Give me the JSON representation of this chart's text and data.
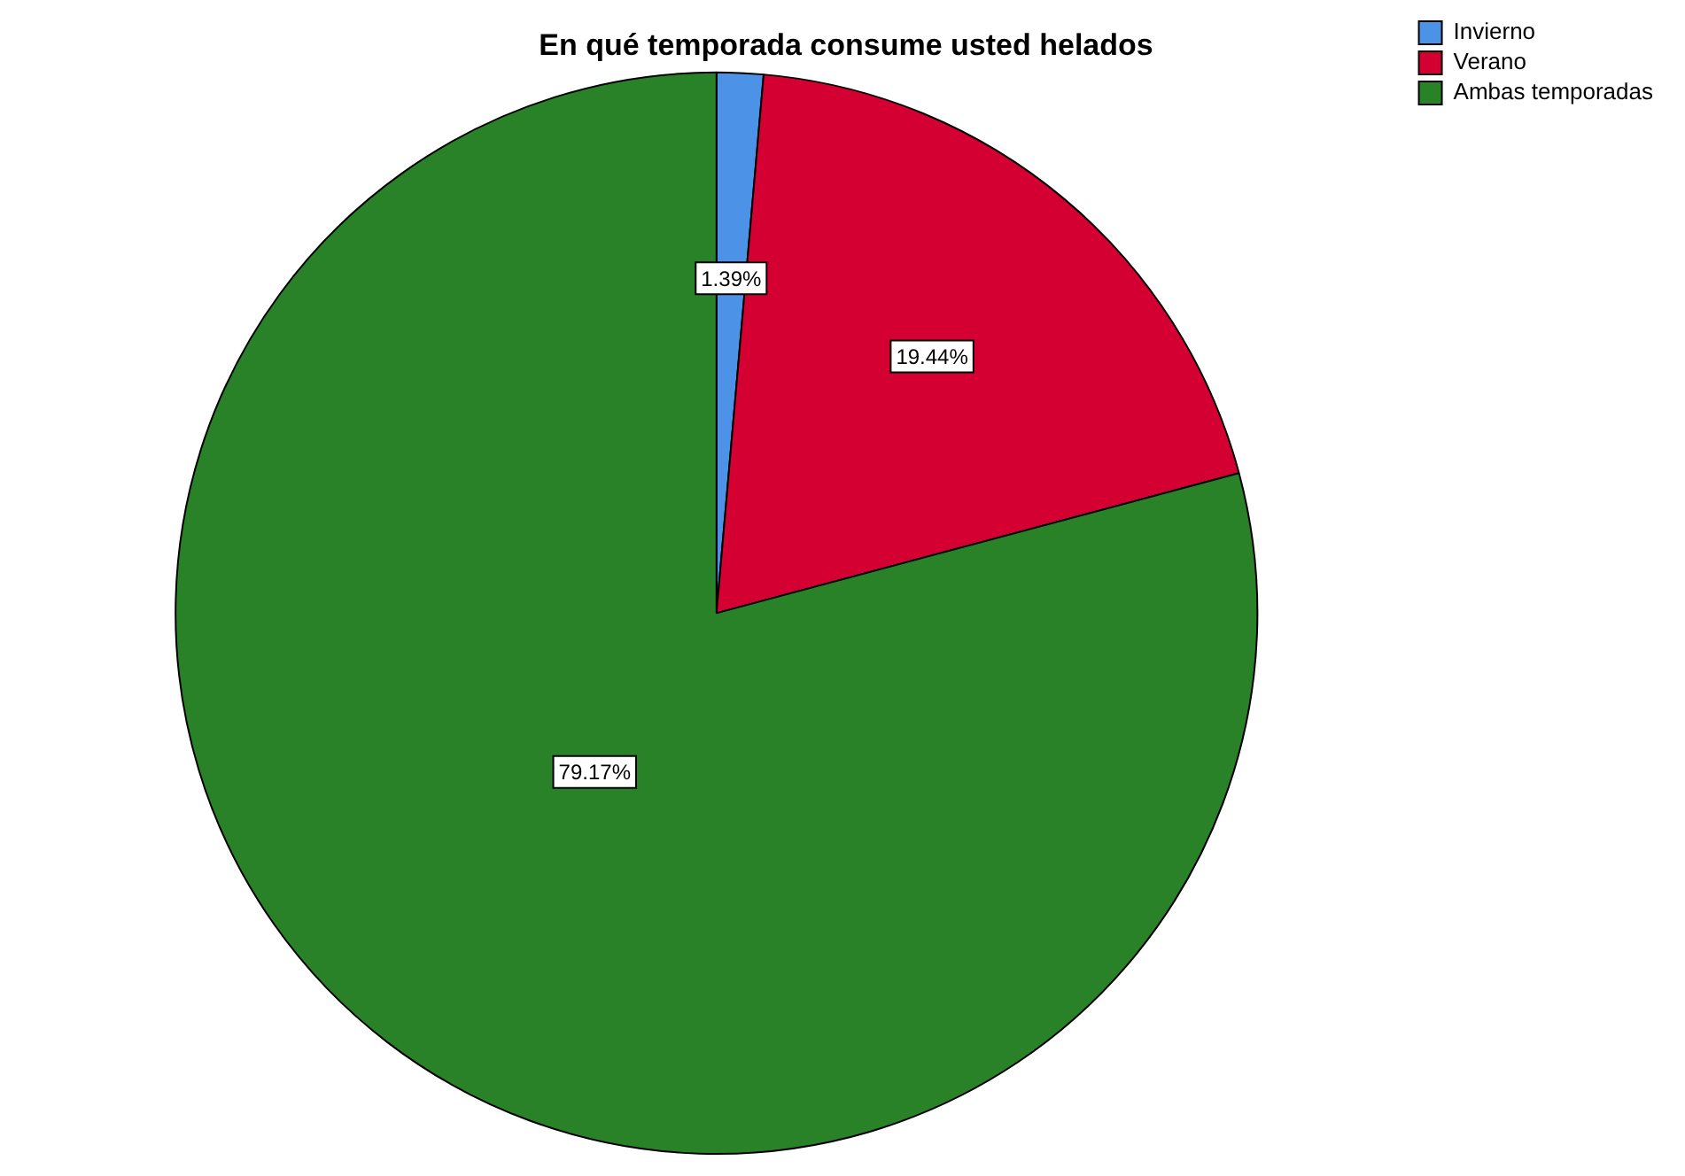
{
  "chart_data": {
    "type": "pie",
    "title": "En qué temporada consume usted helados",
    "categories": [
      "Invierno",
      "Verano",
      "Ambas temporadas"
    ],
    "values": [
      1.39,
      19.44,
      79.17
    ],
    "colors": [
      "#4c93e8",
      "#d50032",
      "#2a8228"
    ],
    "value_labels": [
      "1.39%",
      "19.44%",
      "79.17%"
    ],
    "legend": "top right"
  }
}
